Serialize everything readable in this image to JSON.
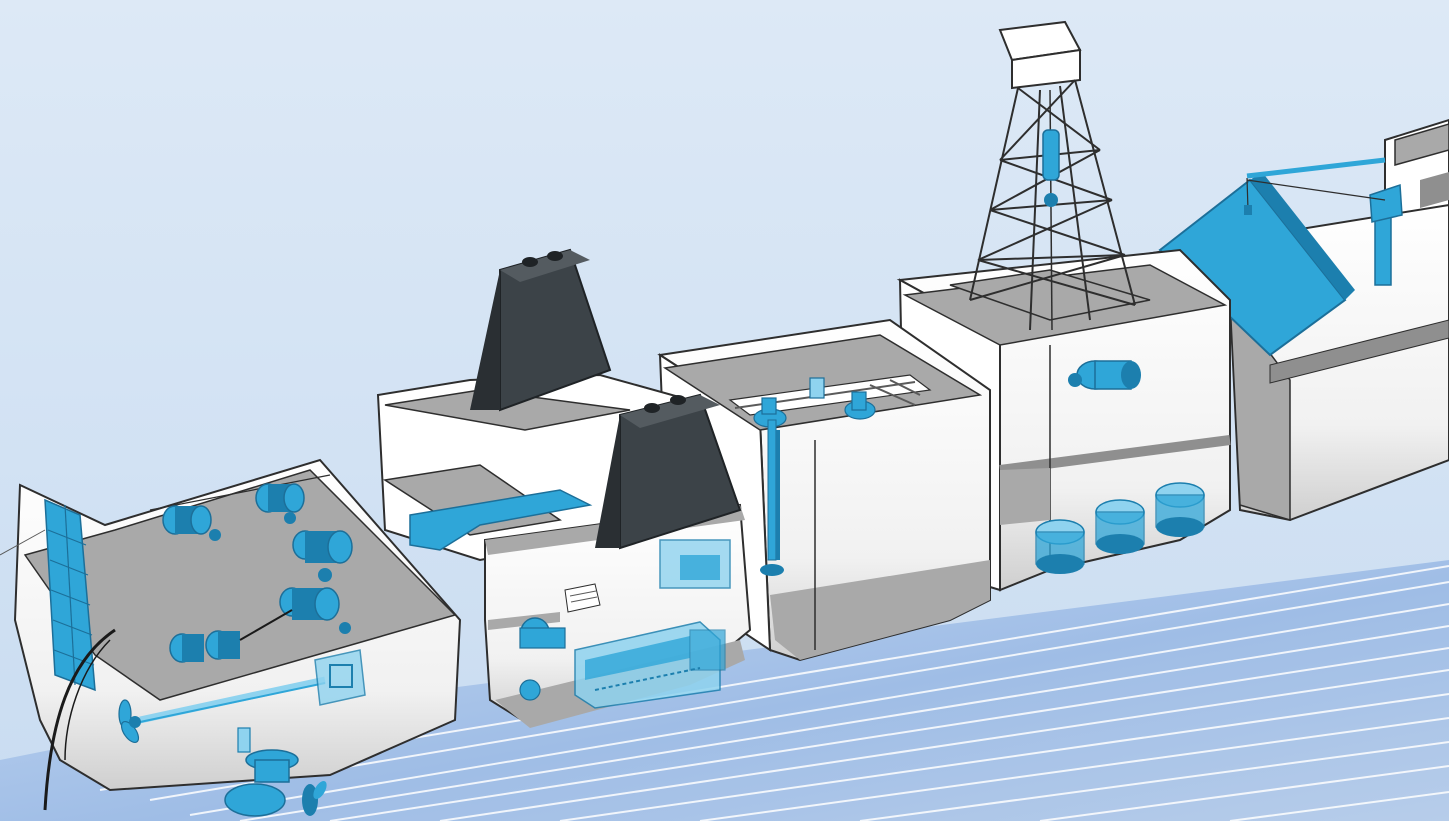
{
  "colors": {
    "sky_top": "#dde9f6",
    "sky_bottom": "#c9dcf1",
    "water": "#9fbde6",
    "water_light": "#c4d8f2",
    "hull_white": "#ffffff",
    "deck_gray": "#a9a9a9",
    "wall_gray": "#8f8f8f",
    "funnel_dark": "#3c4348",
    "equipment_blue": "#2fa6d8",
    "equipment_blue_dark": "#1c7fae",
    "equipment_blue_glass": "#8fd3ef",
    "outline": "#2e2e2e"
  },
  "modules": [
    {
      "id": "stern",
      "depicts": [
        "rudder",
        "propeller",
        "shaft-line",
        "mooring-winches",
        "azimuth-thruster",
        "transom-door"
      ]
    },
    {
      "id": "engine-room",
      "depicts": [
        "funnel",
        "generator-sets",
        "main-engine",
        "pumps",
        "switchboard"
      ]
    },
    {
      "id": "pump-room",
      "depicts": [
        "piping",
        "valves",
        "deepwell-pump"
      ]
    },
    {
      "id": "drilling",
      "depicts": [
        "derrick",
        "drawworks",
        "mud-pumps"
      ]
    },
    {
      "id": "deck-crane",
      "depicts": [
        "hatch-cover",
        "crane"
      ]
    }
  ]
}
